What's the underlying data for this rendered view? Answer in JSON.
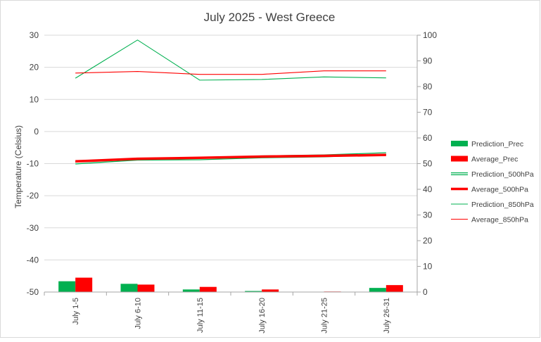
{
  "chart_data": {
    "type": "line",
    "title": "July 2025 - West Greece",
    "ylabel": "Temperature (Celsius)",
    "ylabel_right": "",
    "xlabel": "",
    "categories": [
      "July 1-5",
      "July 6-10",
      "July 11-15",
      "July 16-20",
      "July 21-25",
      "July 26-31"
    ],
    "left_axis": {
      "min": -50,
      "max": 30,
      "step": 10,
      "ticks": [
        "30",
        "20",
        "10",
        "0",
        "-10",
        "-20",
        "-30",
        "-40",
        "-50"
      ]
    },
    "right_axis": {
      "min": 0,
      "max": 100,
      "step": 10,
      "ticks": [
        "100",
        "90",
        "80",
        "70",
        "60",
        "50",
        "40",
        "30",
        "20",
        "10",
        "0"
      ]
    },
    "grid": true,
    "legend_position": "right",
    "series": [
      {
        "name": "Prediction_Prec",
        "kind": "bar",
        "axis": "right",
        "color": "#00b050",
        "values": [
          4.2,
          3.2,
          1.0,
          0.4,
          0.1,
          1.6
        ]
      },
      {
        "name": "Average_Prec",
        "kind": "bar",
        "axis": "right",
        "color": "#ff0000",
        "values": [
          5.6,
          2.9,
          2.0,
          1.0,
          0.2,
          2.7
        ]
      },
      {
        "name": "Prediction_500hPa",
        "kind": "line",
        "axis": "left",
        "color": "#00b050",
        "style": "double",
        "values": [
          -9.8,
          -8.6,
          -8.5,
          -7.9,
          -7.6,
          -6.9
        ]
      },
      {
        "name": "Average_500hPa",
        "kind": "line",
        "axis": "left",
        "color": "#ff0000",
        "style": "thick",
        "values": [
          -9.3,
          -8.5,
          -8.2,
          -7.8,
          -7.6,
          -7.3
        ]
      },
      {
        "name": "Prediction_850hPa",
        "kind": "line",
        "axis": "left",
        "color": "#00b050",
        "style": "thin",
        "values": [
          16.6,
          28.5,
          16.0,
          16.2,
          17.0,
          16.7
        ]
      },
      {
        "name": "Average_850hPa",
        "kind": "line",
        "axis": "left",
        "color": "#ff0000",
        "style": "thin",
        "values": [
          18.2,
          18.7,
          17.8,
          17.8,
          18.9,
          18.9
        ]
      }
    ]
  }
}
